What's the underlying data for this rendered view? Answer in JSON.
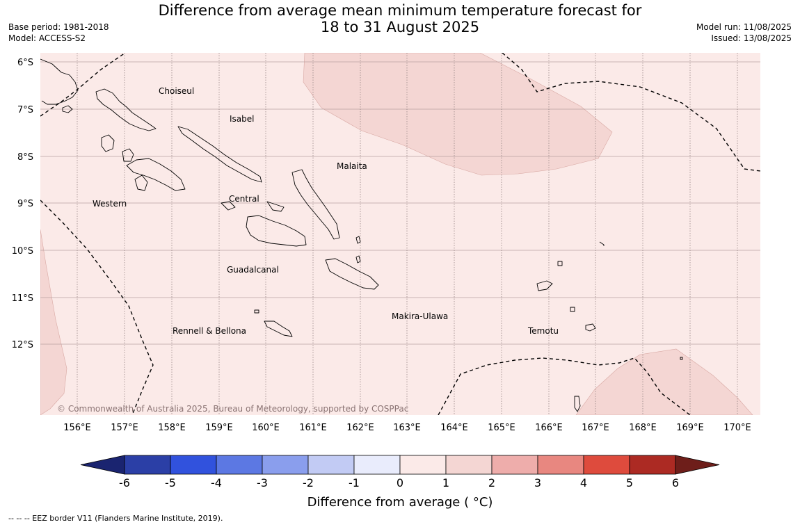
{
  "header": {
    "title_line1": "Difference from average mean minimum temperature forecast for",
    "title_line2": "18 to 31 August 2025",
    "base_period": "Base period: 1981-2018",
    "model": "Model: ACCESS-S2",
    "model_run": "Model run: 11/08/2025",
    "issued": "Issued: 13/08/2025"
  },
  "map": {
    "lat_labels": [
      "6°S",
      "7°S",
      "8°S",
      "9°S",
      "10°S",
      "11°S",
      "12°S"
    ],
    "lon_labels": [
      "156°E",
      "157°E",
      "158°E",
      "159°E",
      "160°E",
      "161°E",
      "162°E",
      "163°E",
      "164°E",
      "165°E",
      "166°E",
      "167°E",
      "168°E",
      "169°E",
      "170°E"
    ],
    "province_labels": [
      "Choiseul",
      "Isabel",
      "Malaita",
      "Western",
      "Central",
      "Guadalcanal",
      "Makira-Ulawa",
      "Rennell & Bellona",
      "Temotu"
    ],
    "copyright": "© Commonwealth of Australia 2025, Bureau of Meteorology, supported by COSPPac",
    "colors": {
      "bin_0_1": "#fbeae8",
      "bin_1_2": "#f4d6d3",
      "land_outline": "#000000"
    }
  },
  "colorbar": {
    "ticks": [
      "-6",
      "-5",
      "-4",
      "-3",
      "-2",
      "-1",
      "0",
      "1",
      "2",
      "3",
      "4",
      "5",
      "6"
    ],
    "label": "Difference from average ( °C)",
    "under_color": "#1a2470",
    "over_color": "#6e1e1a",
    "bin_colors": [
      "#2b3fa6",
      "#3152dd",
      "#5c78e3",
      "#8a9eed",
      "#c2cbf4",
      "#e9ecfc",
      "#fbeae8",
      "#f4d6d3",
      "#eeadab",
      "#e88780",
      "#de4b3d",
      "#ac2a23"
    ]
  },
  "footer": {
    "eez_note": "--  --  -- EEZ border V11 (Flanders Marine Institute, 2019)."
  }
}
